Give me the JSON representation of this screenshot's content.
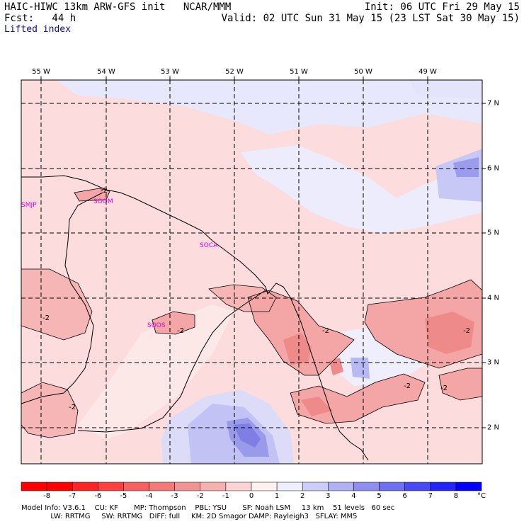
{
  "header": {
    "line1_left": "HAIC-HIWC 13km ARW-GFS init   NCAR/MMM",
    "line1_right": "Init: 06 UTC Fri 29 May 15",
    "line2_left": "Fcst:   44 h",
    "line2_right": "Valid: 02 UTC Sun 31 May 15 (23 LST Sat 30 May 15)",
    "line3": "Lifted index"
  },
  "map": {
    "lon_labels": [
      "55 W",
      "54 W",
      "53 W",
      "52 W",
      "51 W",
      "50 W",
      "49 W"
    ],
    "lat_labels": [
      "7 N",
      "6 N",
      "5 N",
      "4 N",
      "3 N",
      "2 N"
    ],
    "stations": [
      "SMJP",
      "SOCA",
      "SOOM",
      "SOOS"
    ],
    "contour_label": "-2",
    "colors": {
      "pink_light": "#fcdcdc",
      "pink_mid": "#f7b6b6",
      "pink_dark": "#ee8a8a",
      "blue_light": "#e6e6fc",
      "blue_mid": "#c6c6f6",
      "blue_dark": "#8c8ce8",
      "station": "#e000e0"
    }
  },
  "colorbar": {
    "unit": "°C",
    "ticks": [
      "-8",
      "-7",
      "-6",
      "-5",
      "-4",
      "-3",
      "-2",
      "-1",
      "0",
      "1",
      "2",
      "3",
      "4",
      "5",
      "6",
      "7",
      "8"
    ],
    "colors": [
      "#ff0000",
      "#ff2424",
      "#ff4040",
      "#f86060",
      "#f47a7a",
      "#f29494",
      "#f6b0b0",
      "#fcd2d2",
      "#fff0f0",
      "#eeeefc",
      "#ccccf8",
      "#b0b0f4",
      "#8e8ef0",
      "#6e6ef0",
      "#4848f4",
      "#2424f8",
      "#0000ff"
    ]
  },
  "model_info": {
    "line1": "Model Info: V3.6.1    CU: KF       MP: Thompson    PBL: YSU       SF: Noah LSM     13 km    51 levels   60 sec",
    "line2": "             LW: RRTMG     SW: RRTMG   DIFF: full     KM: 2D Smagor DAMP: Rayleigh3   SFLAY: MM5"
  }
}
